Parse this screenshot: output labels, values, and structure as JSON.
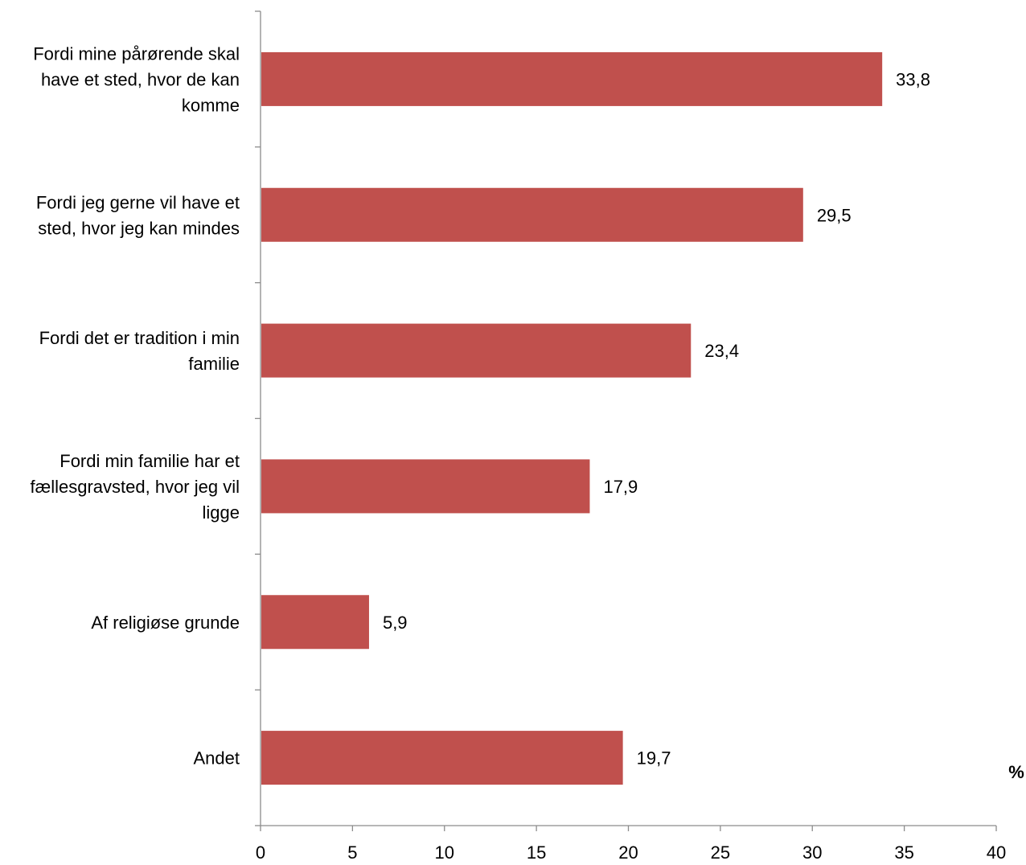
{
  "chart_data": {
    "type": "bar",
    "orientation": "horizontal",
    "categories": [
      [
        "Fordi mine pårørende skal",
        "have et sted, hvor de kan",
        "komme"
      ],
      [
        "Fordi jeg gerne vil have et",
        "sted, hvor jeg kan mindes"
      ],
      [
        "Fordi det er tradition i min",
        "familie"
      ],
      [
        "Fordi min familie har et",
        "fællesgravsted, hvor jeg vil",
        "ligge"
      ],
      [
        "Af religiøse grunde"
      ],
      [
        "Andet"
      ]
    ],
    "values": [
      33.8,
      29.5,
      23.4,
      17.9,
      5.9,
      19.7
    ],
    "value_labels": [
      "33,8",
      "29,5",
      "23,4",
      "17,9",
      "5,9",
      "19,7"
    ],
    "xlim": [
      0,
      40
    ],
    "x_ticks": [
      0,
      5,
      10,
      15,
      20,
      25,
      30,
      35,
      40
    ],
    "x_tick_labels": [
      "0",
      "5",
      "10",
      "15",
      "20",
      "25",
      "30",
      "35",
      "40"
    ],
    "unit_label": "%",
    "bar_color": "#C0504D",
    "grid": false,
    "legend": "none"
  }
}
